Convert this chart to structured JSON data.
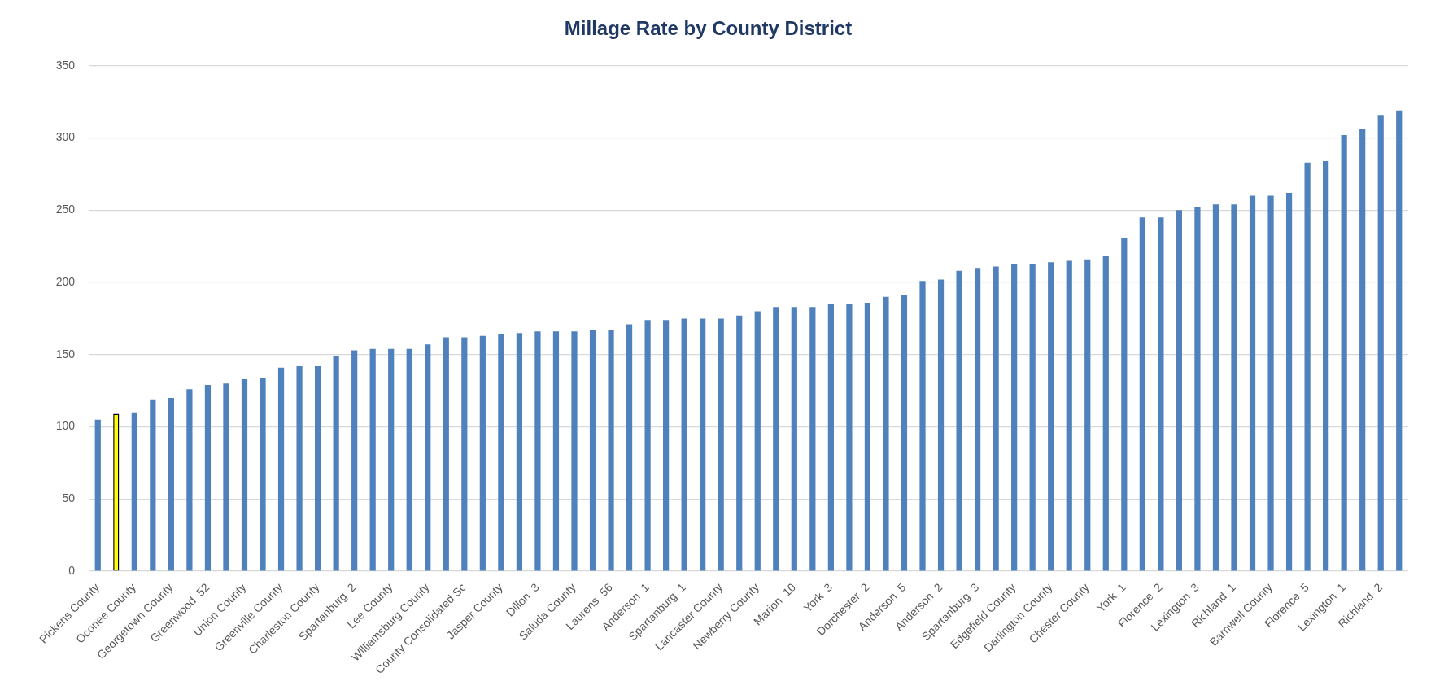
{
  "chart_data": {
    "type": "bar",
    "title": "Millage Rate by County District",
    "categories": [
      "Pickens County",
      null,
      "Oconee County",
      null,
      "Georgetown County",
      null,
      "Greenwood  52",
      null,
      "Union County",
      null,
      "Greenville County",
      null,
      "Charleston County",
      null,
      "Spartanburg  2",
      null,
      "Lee County",
      null,
      "Williamsburg County",
      null,
      "County Consolidated Sc",
      null,
      "Jasper County",
      null,
      "Dillon  3",
      null,
      "Saluda County",
      null,
      "Laurens  56",
      null,
      "Anderson  1",
      null,
      "Spartanburg  1",
      null,
      "Lancaster County",
      null,
      "Newberry County",
      null,
      "Marion  10",
      null,
      "York  3",
      null,
      "Dorchester  2",
      null,
      "Anderson  5",
      null,
      "Anderson  2",
      null,
      "Spartanburg  3",
      null,
      "Edgefield County",
      null,
      "Darlington County",
      null,
      "Chester County",
      null,
      "York  1",
      null,
      "Florence  2",
      null,
      "Lexington  3",
      null,
      "Richland  1",
      null,
      "Barnwell County",
      null,
      "Florence  5",
      null,
      "Lexington  1",
      null,
      "Richland  2",
      null
    ],
    "values": [
      105,
      109,
      110,
      119,
      120,
      126,
      129,
      130,
      133,
      134,
      141,
      142,
      142,
      149,
      153,
      154,
      154,
      154,
      157,
      162,
      162,
      163,
      164,
      165,
      166,
      166,
      166,
      167,
      167,
      171,
      174,
      174,
      175,
      175,
      175,
      177,
      180,
      183,
      183,
      183,
      185,
      185,
      186,
      190,
      191,
      201,
      202,
      208,
      210,
      211,
      213,
      213,
      214,
      215,
      216,
      218,
      231,
      245,
      245,
      250,
      252,
      254,
      254,
      260,
      260,
      262,
      283,
      284,
      302,
      306,
      316,
      319
    ],
    "colors": [
      "#4f81bd",
      "#ffff00",
      "#4f81bd",
      "#4f81bd",
      "#4f81bd",
      "#4f81bd",
      "#4f81bd",
      "#4f81bd",
      "#4f81bd",
      "#4f81bd",
      "#4f81bd",
      "#4f81bd",
      "#4f81bd",
      "#4f81bd",
      "#4f81bd",
      "#4f81bd",
      "#4f81bd",
      "#4f81bd",
      "#4f81bd",
      "#4f81bd",
      "#4f81bd",
      "#4f81bd",
      "#4f81bd",
      "#4f81bd",
      "#4f81bd",
      "#4f81bd",
      "#4f81bd",
      "#4f81bd",
      "#4f81bd",
      "#4f81bd",
      "#4f81bd",
      "#4f81bd",
      "#4f81bd",
      "#4f81bd",
      "#4f81bd",
      "#4f81bd",
      "#4f81bd",
      "#4f81bd",
      "#4f81bd",
      "#4f81bd",
      "#4f81bd",
      "#4f81bd",
      "#4f81bd",
      "#4f81bd",
      "#4f81bd",
      "#4f81bd",
      "#4f81bd",
      "#4f81bd",
      "#4f81bd",
      "#4f81bd",
      "#4f81bd",
      "#4f81bd",
      "#4f81bd",
      "#4f81bd",
      "#4f81bd",
      "#4f81bd",
      "#4f81bd",
      "#4f81bd",
      "#4f81bd",
      "#4f81bd",
      "#4f81bd",
      "#4f81bd",
      "#4f81bd",
      "#4f81bd",
      "#4f81bd",
      "#4f81bd",
      "#4f81bd",
      "#4f81bd",
      "#4f81bd",
      "#4f81bd",
      "#4f81bd",
      "#4f81bd"
    ],
    "ylim": [
      0,
      350
    ],
    "yticks": [
      0,
      50,
      100,
      150,
      200,
      250,
      300,
      350
    ],
    "grid": "y"
  }
}
